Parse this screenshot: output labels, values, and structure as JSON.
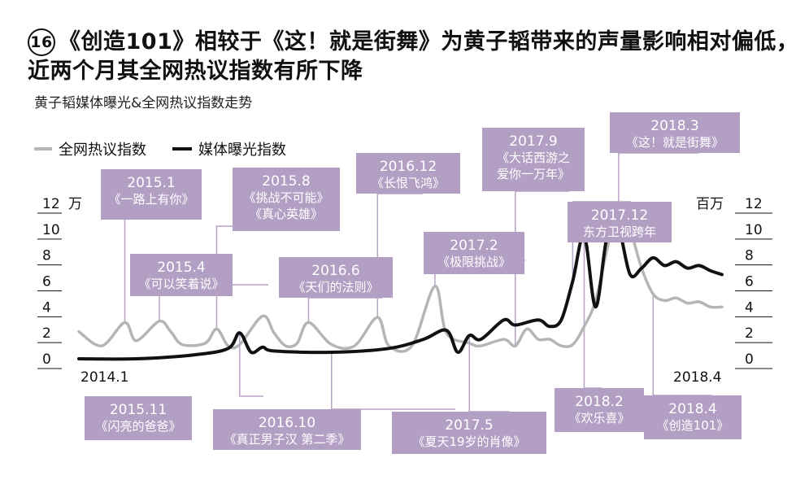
{
  "title": {
    "number": "16",
    "text": "《创造101》相较于《这！就是街舞》为黄子韬带来的声量影响相对偏低，近两个月其全网热议指数有所下降"
  },
  "subtitle": "黄子韬媒体曝光&全网热议指数走势",
  "chart_data": {
    "type": "line",
    "x_start_label": "2014.1",
    "x_end_label": "2018.4",
    "left_axis": {
      "unit": "万",
      "ticks": [
        "12",
        "10",
        "8",
        "6",
        "4",
        "2",
        "0"
      ],
      "ylim": [
        0,
        12
      ]
    },
    "right_axis": {
      "unit": "百万",
      "ticks": [
        "12",
        "10",
        "8",
        "6",
        "4",
        "2",
        "0"
      ],
      "ylim": [
        0,
        12
      ]
    },
    "legend": [
      "全网热议指数",
      "媒体曝光指数"
    ],
    "series": [
      {
        "name": "全网热议指数",
        "color": "#b5b5b5",
        "x": [
          0,
          2,
          4,
          5,
          7,
          8,
          9,
          11,
          12,
          13,
          14,
          16,
          17,
          18,
          19,
          20,
          22,
          24,
          26,
          27,
          29,
          31,
          32,
          34,
          35,
          37,
          38,
          39,
          40,
          41,
          42,
          43,
          44,
          45,
          46,
          47,
          48,
          49,
          50,
          51,
          52,
          53,
          54,
          55,
          56
        ],
        "values": [
          2.1,
          1.0,
          2.8,
          1.4,
          2.9,
          2.1,
          1.1,
          1.2,
          2.3,
          1.0,
          1.1,
          3.3,
          2.0,
          1.0,
          1.2,
          2.8,
          1.1,
          1.0,
          3.2,
          1.0,
          1.0,
          5.6,
          2.0,
          1.2,
          1.0,
          1.5,
          1.0,
          2.3,
          1.5,
          1.5,
          1.0,
          1.1,
          2.5,
          4.5,
          8.5,
          12.0,
          10.0,
          7.0,
          5.0,
          4.5,
          4.7,
          4.3,
          4.4,
          4.0,
          4.0
        ]
      },
      {
        "name": "媒体曝光指数",
        "color": "#111111",
        "x": [
          0,
          5,
          10,
          13,
          14,
          15,
          16,
          17,
          22,
          27,
          30,
          32,
          33,
          34,
          35,
          37,
          38,
          40,
          41,
          42,
          43,
          44,
          45,
          46,
          47,
          48,
          49,
          50,
          51,
          52,
          53,
          54,
          55,
          56
        ],
        "values": [
          0.0,
          0.0,
          0.3,
          0.8,
          2.0,
          0.5,
          0.9,
          0.6,
          0.5,
          0.8,
          1.5,
          2.2,
          0.5,
          1.8,
          1.5,
          3.0,
          2.6,
          3.0,
          2.5,
          3.0,
          6.0,
          9.5,
          4.0,
          9.5,
          10.0,
          6.5,
          7.0,
          7.8,
          7.2,
          7.5,
          7.0,
          7.2,
          6.8,
          6.5
        ]
      }
    ],
    "annotations": [
      {
        "date": "2015.1",
        "name": "《一路上有你》",
        "series": "全网热议指数",
        "x": 4
      },
      {
        "date": "2015.4",
        "name": "《可以笑着说》",
        "series": "全网热议指数",
        "x": 7
      },
      {
        "date": "2015.8",
        "name": "《挑战不可能》《真心英雄》",
        "series": "全网热议指数",
        "x": 12
      },
      {
        "date": "2015.11",
        "name": "《闪亮的爸爸》",
        "series": "媒体曝光指数",
        "x": 14
      },
      {
        "date": "2016.6",
        "name": "《天们的法则》",
        "series": "全网热议指数",
        "x": 20
      },
      {
        "date": "2016.10",
        "name": "《真正男子汉 第二季》",
        "series": "媒体曝光指数",
        "x": 22
      },
      {
        "date": "2016.12",
        "name": "《长恨飞鸿》",
        "series": "全网热议指数",
        "x": 26
      },
      {
        "date": "2017.2",
        "name": "《极限挑战》",
        "series": "全网热议指数",
        "x": 31
      },
      {
        "date": "2017.5",
        "name": "《夏天19岁的肖像》",
        "series": "媒体曝光指数",
        "x": 34
      },
      {
        "date": "2017.9",
        "name": "《大话西游之爱你一万年》",
        "series": "全网热议指数",
        "x": 38
      },
      {
        "date": "2017.12",
        "name": "东方卫视跨年",
        "series": "媒体曝光指数",
        "x": 43
      },
      {
        "date": "2018.2",
        "name": "《欢乐喜》",
        "series": "媒体曝光指数",
        "x": 44
      },
      {
        "date": "2018.3",
        "name": "《这！就是街舞》",
        "series": "全网热议指数",
        "x": 47
      },
      {
        "date": "2018.4",
        "name": "《创造101》",
        "series": "全网热议指数",
        "x": 50
      }
    ]
  }
}
